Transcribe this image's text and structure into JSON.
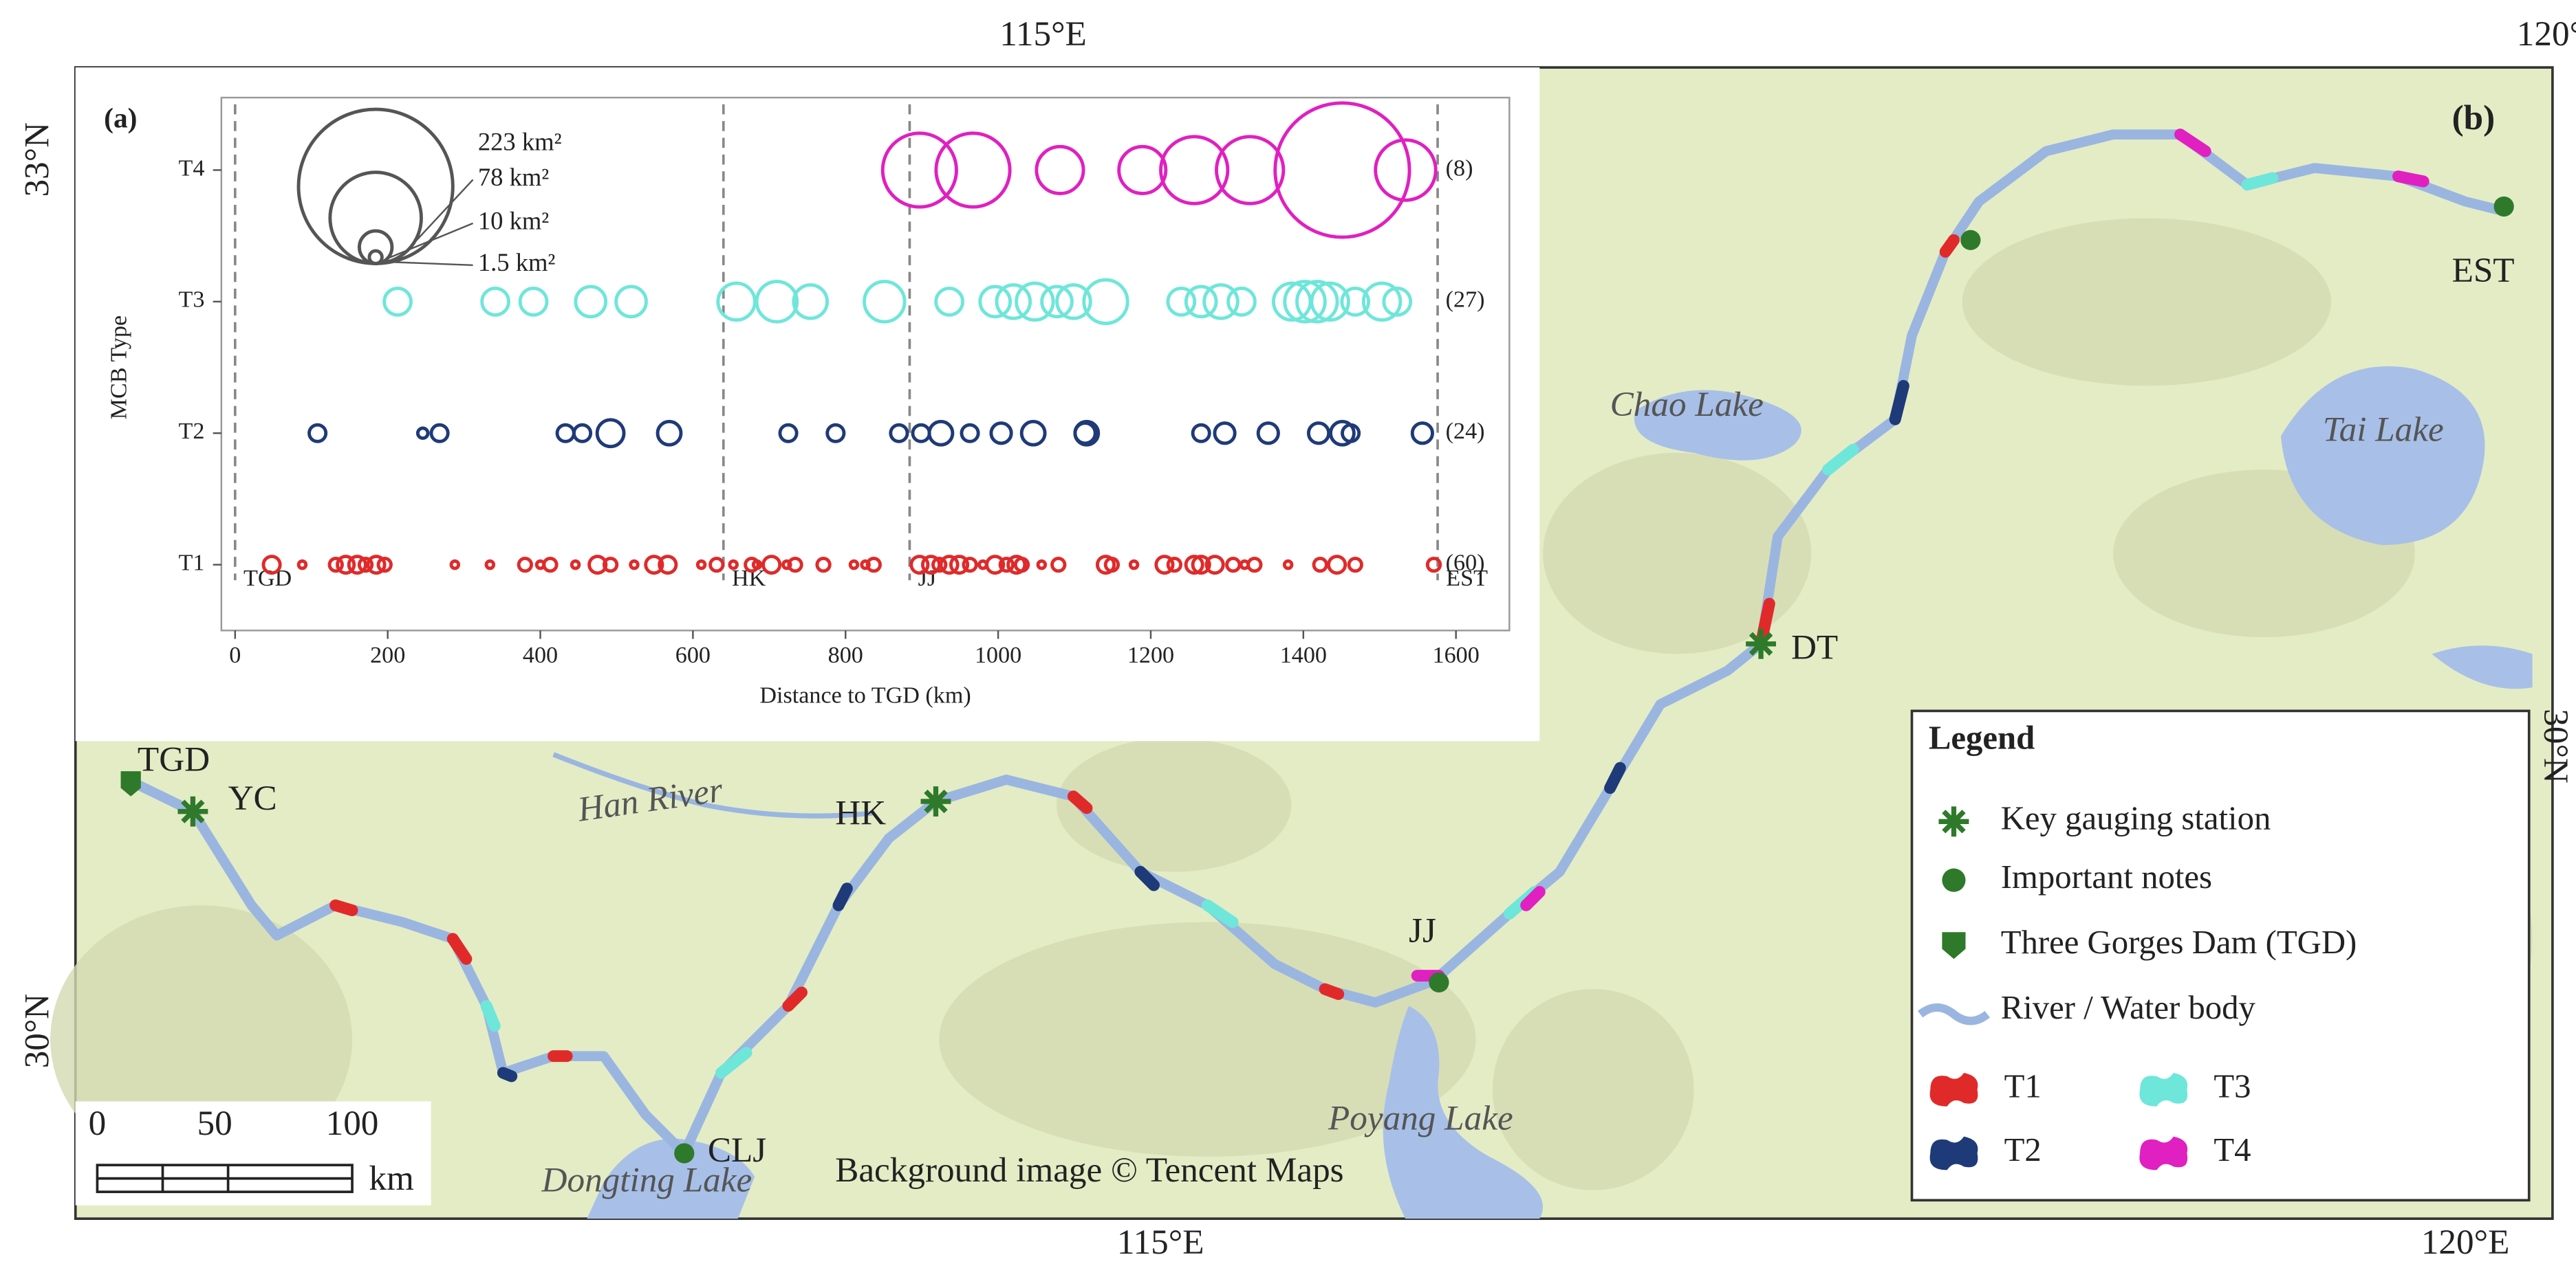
{
  "chart_data": {
    "type": "bubble",
    "title": "(a)",
    "x_label": "Distance to TGD (km)",
    "y_label": "MCB Type",
    "categories": [
      "T1",
      "T2",
      "T3",
      "T4"
    ],
    "xlim": [
      -18,
      1670
    ],
    "xticks": [
      0,
      200,
      400,
      600,
      800,
      1000,
      1200,
      1400,
      1600
    ],
    "markers": [
      {
        "label": "TGD",
        "x": 0
      },
      {
        "label": "HK",
        "x": 640
      },
      {
        "label": "JJ",
        "x": 884
      },
      {
        "label": "EST",
        "x": 1576
      }
    ],
    "size_legend": [
      {
        "value": 223,
        "label": "223 km²"
      },
      {
        "value": 78,
        "label": "78  km²"
      },
      {
        "value": 10,
        "label": "10   km²"
      },
      {
        "value": 1.5,
        "label": "1.5  km²"
      }
    ],
    "series": [
      {
        "name": "T1",
        "color": "#e02a2a",
        "count_label": "(60)",
        "x": [
          48,
          88,
          132,
          145,
          160,
          171,
          185,
          196,
          288,
          334,
          380,
          400,
          413,
          446,
          475,
          492,
          523,
          549,
          567,
          611,
          631,
          653,
          677,
          684,
          703,
          723,
          734,
          771,
          811,
          826,
          837,
          897,
          912,
          923,
          936,
          949,
          963,
          980,
          996,
          1011,
          1024,
          1031,
          1057,
          1079,
          1141,
          1149,
          1178,
          1218,
          1231,
          1257,
          1266,
          1284,
          1308,
          1323,
          1336,
          1380,
          1422,
          1444,
          1468,
          1571
        ],
        "sizes": [
          2.6,
          0.5,
          1.5,
          2.6,
          2.6,
          1.5,
          2.6,
          1.5,
          0.5,
          0.5,
          1.5,
          0.5,
          1.5,
          0.5,
          2.6,
          1.5,
          0.5,
          2.6,
          2.6,
          0.5,
          1.5,
          0.5,
          1.5,
          0.5,
          2.6,
          0.5,
          1.5,
          1.5,
          0.5,
          0.5,
          1.5,
          2.6,
          2.6,
          1.5,
          2.6,
          2.6,
          1.5,
          0.5,
          2.6,
          1.5,
          2.6,
          1.5,
          0.5,
          1.5,
          2.6,
          1.5,
          0.5,
          2.6,
          1.5,
          2.6,
          2.6,
          2.6,
          1.5,
          0.5,
          1.5,
          0.5,
          1.5,
          2.6,
          1.5,
          1.5
        ]
      },
      {
        "name": "T2",
        "color": "#1f3a78",
        "count_label": "(24)",
        "x": [
          108,
          246,
          268,
          433,
          455,
          492,
          569,
          725,
          787,
          870,
          899,
          925,
          963,
          1004,
          1046,
          1114,
          1116,
          1266,
          1297,
          1354,
          1420,
          1451,
          1462,
          1556
        ],
        "sizes": [
          2.6,
          0.95,
          2.6,
          2.6,
          2.6,
          6.7,
          5.1,
          2.6,
          2.6,
          2.6,
          2.6,
          5.1,
          2.6,
          3.8,
          5.1,
          3.8,
          5.1,
          2.6,
          3.8,
          3.8,
          3.8,
          5.1,
          2.6,
          3.8
        ]
      },
      {
        "name": "T3",
        "color": "#6fe6da",
        "count_label": "(27)",
        "x": [
          213,
          341,
          391,
          466,
          519,
          657,
          710,
          754,
          851,
          936,
          996,
          1020,
          1048,
          1077,
          1099,
          1141,
          1240,
          1266,
          1292,
          1319,
          1385,
          1402,
          1418,
          1435,
          1468,
          1503,
          1523
        ],
        "sizes": [
          6.7,
          6.7,
          6.7,
          8.5,
          8.5,
          12.7,
          15.2,
          10.5,
          15.2,
          6.7,
          8.5,
          10.5,
          12.7,
          8.5,
          10.5,
          17.8,
          6.7,
          8.5,
          10.5,
          6.7,
          12.7,
          15.2,
          15.2,
          12.7,
          6.7,
          12.7,
          6.7
        ]
      },
      {
        "name": "T4",
        "color": "#e020c0",
        "count_label": "(8)",
        "x": [
          897,
          967,
          1081,
          1189,
          1257,
          1330,
          1451,
          1534
        ],
        "sizes": [
          51,
          51,
          20.6,
          20.6,
          42,
          42,
          169,
          34
        ]
      }
    ]
  },
  "map": {
    "panel_label": "(b)",
    "lon_top": [
      "115°E",
      "120°E"
    ],
    "lon_bottom": [
      "115°E",
      "120°E"
    ],
    "lat_left": [
      "33°N",
      "30°N"
    ],
    "lat_right": "30°N",
    "stations": [
      "TGD",
      "YC",
      "HK",
      "JJ",
      "DT",
      "CLJ",
      "EST"
    ],
    "water_labels": [
      "Han River",
      "Chao Lake",
      "Tai Lake",
      "Poyang Lake",
      "Dongting Lake"
    ],
    "credit": "Background image © Tencent Maps",
    "scale_bar": {
      "ticks": [
        0,
        50,
        100
      ],
      "unit": "km"
    },
    "legend": {
      "title": "Legend",
      "items": [
        "Key gauging station",
        "Important notes",
        "Three Gorges Dam (TGD)",
        "River / Water body"
      ],
      "types": [
        "T1",
        "T2",
        "T3",
        "T4"
      ]
    }
  }
}
